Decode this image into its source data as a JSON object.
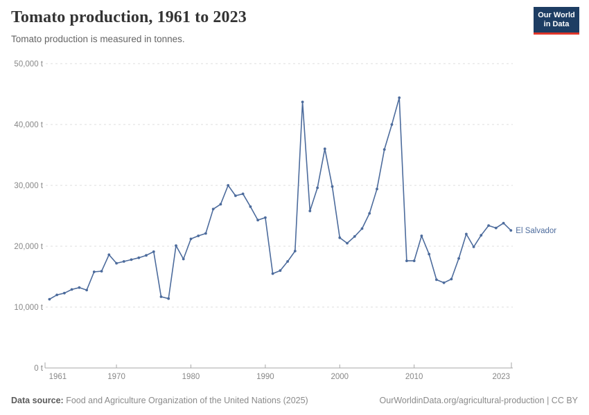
{
  "header": {
    "title": "Tomato production, 1961 to 2023",
    "subtitle": "Tomato production is measured in tonnes.",
    "logo": {
      "line1": "Our World",
      "line2": "in Data",
      "bg_color": "#1d3d63",
      "accent_color": "#e0362a"
    }
  },
  "chart_data": {
    "type": "line",
    "title": "Tomato production, 1961 to 2023",
    "unit": "tonnes",
    "entity_label": "El Salvador",
    "xlim": [
      1961,
      2023
    ],
    "ylim": [
      0,
      50000
    ],
    "grid": "horizontal-dashed",
    "legend_position": "end-of-line-label",
    "x_ticks": [
      {
        "v": 1961,
        "label": "1961"
      },
      {
        "v": 1970,
        "label": "1970"
      },
      {
        "v": 1980,
        "label": "1980"
      },
      {
        "v": 1990,
        "label": "1990"
      },
      {
        "v": 2000,
        "label": "2000"
      },
      {
        "v": 2010,
        "label": "2010"
      },
      {
        "v": 2023,
        "label": "2023"
      }
    ],
    "y_ticks": [
      {
        "v": 0,
        "label": "0 t"
      },
      {
        "v": 10000,
        "label": "10,000 t"
      },
      {
        "v": 20000,
        "label": "20,000 t"
      },
      {
        "v": 30000,
        "label": "30,000 t"
      },
      {
        "v": 40000,
        "label": "40,000 t"
      },
      {
        "v": 50000,
        "label": "50,000 t"
      }
    ],
    "series": [
      {
        "name": "El Salvador",
        "color": "#4c6b9c",
        "x": [
          1961,
          1962,
          1963,
          1964,
          1965,
          1966,
          1967,
          1968,
          1969,
          1970,
          1971,
          1972,
          1973,
          1974,
          1975,
          1976,
          1977,
          1978,
          1979,
          1980,
          1981,
          1982,
          1983,
          1984,
          1985,
          1986,
          1987,
          1988,
          1989,
          1990,
          1991,
          1992,
          1993,
          1994,
          1995,
          1996,
          1997,
          1998,
          1999,
          2000,
          2001,
          2002,
          2003,
          2004,
          2005,
          2006,
          2007,
          2008,
          2009,
          2010,
          2011,
          2012,
          2013,
          2014,
          2015,
          2016,
          2017,
          2018,
          2019,
          2020,
          2021,
          2022,
          2023
        ],
        "values": [
          11300,
          12000,
          12300,
          12900,
          13200,
          12800,
          15800,
          15900,
          18600,
          17200,
          17500,
          17800,
          18100,
          18500,
          19100,
          11700,
          11400,
          20100,
          17900,
          21200,
          21700,
          22100,
          26100,
          26900,
          30000,
          28300,
          28600,
          26500,
          24300,
          24700,
          15500,
          16000,
          17500,
          19200,
          43700,
          25800,
          29600,
          36000,
          29800,
          21400,
          20500,
          21600,
          22900,
          25400,
          29400,
          35900,
          40000,
          44400,
          17600,
          17600,
          21700,
          18700,
          14500,
          14000,
          14600,
          18000,
          22000,
          19900,
          21800,
          23400,
          23000,
          23800,
          22600
        ]
      }
    ]
  },
  "footer": {
    "datasource_label": "Data source:",
    "datasource_text": " Food and Agriculture Organization of the United Nations (2025)",
    "link_text": "OurWorldinData.org/agricultural-production",
    "license_text": " | CC BY"
  }
}
